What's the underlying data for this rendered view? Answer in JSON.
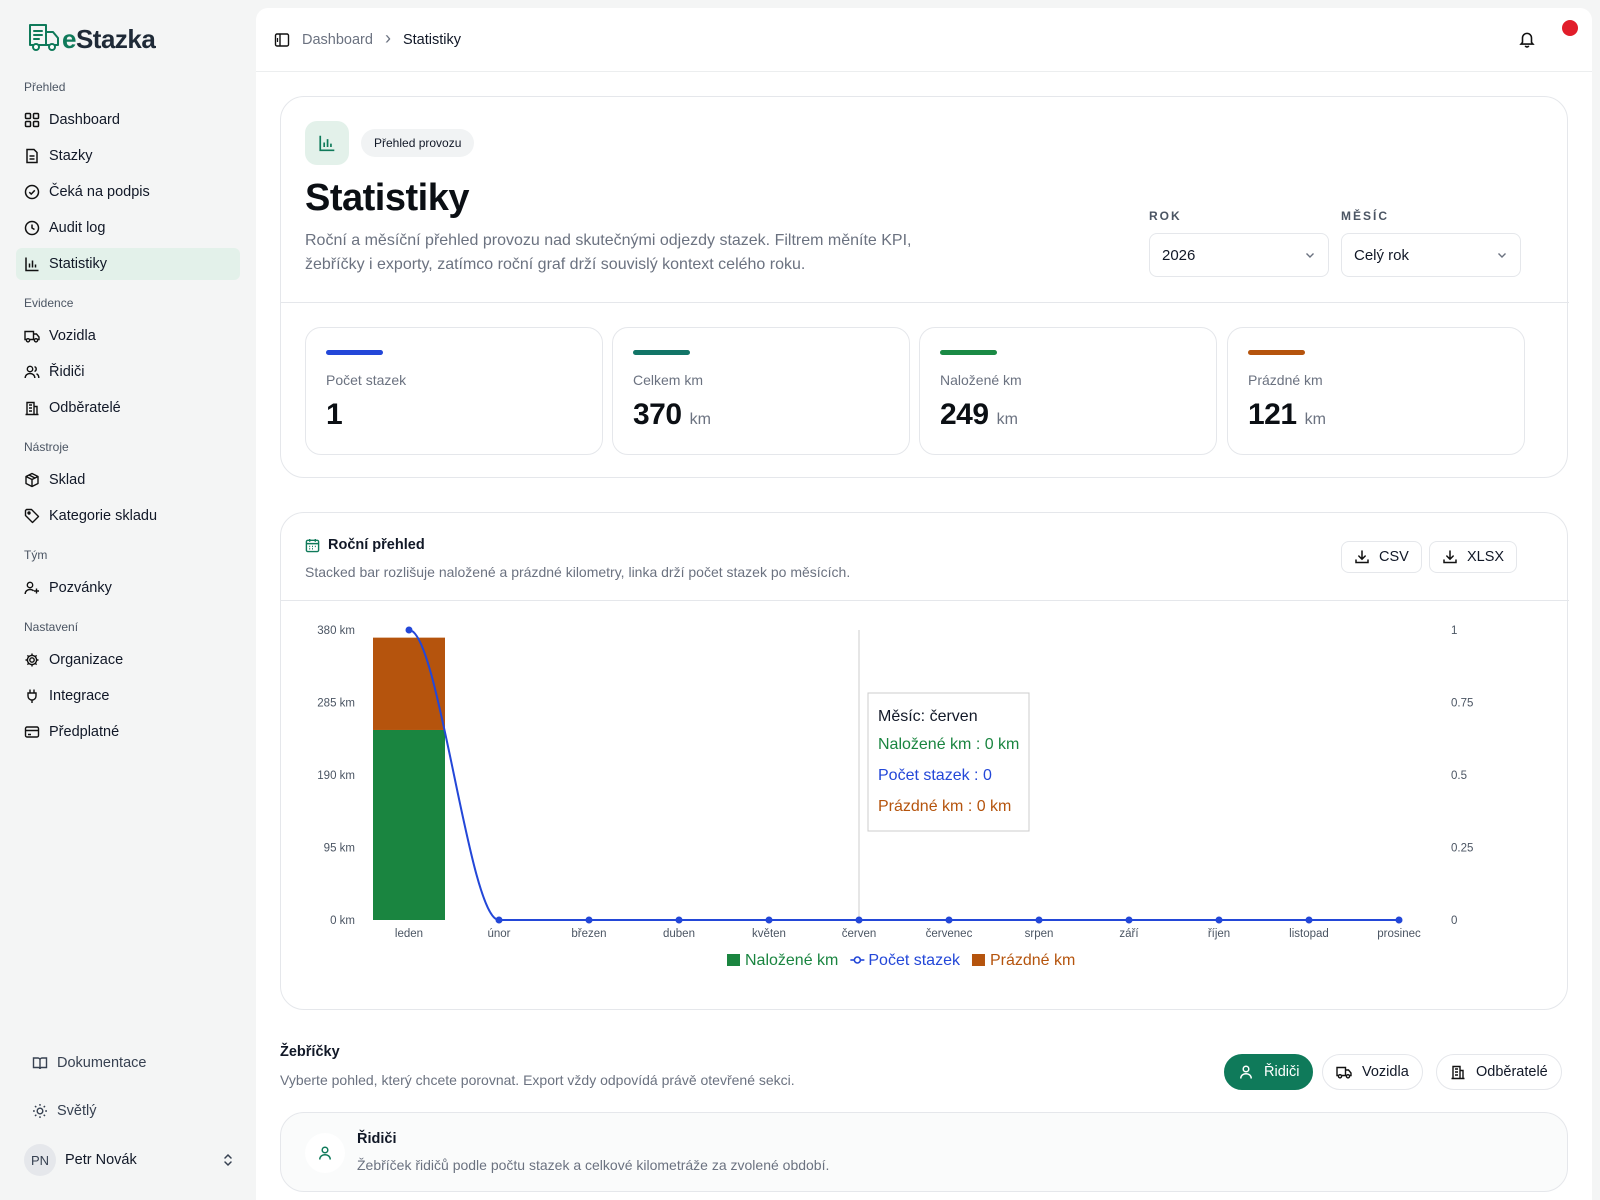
{
  "app": {
    "logo_e": "e",
    "logo_rest": "Stazka"
  },
  "sidebar": {
    "groups": [
      {
        "label": "Přehled"
      },
      {
        "label": "Evidence"
      },
      {
        "label": "Nástroje"
      },
      {
        "label": "Tým"
      },
      {
        "label": "Nastavení"
      }
    ],
    "items": [
      {
        "label": "Dashboard",
        "icon": "grid-icon"
      },
      {
        "label": "Stazky",
        "icon": "document-icon"
      },
      {
        "label": "Čeká na podpis",
        "icon": "check-circle-icon"
      },
      {
        "label": "Audit log",
        "icon": "clock-icon"
      },
      {
        "label": "Statistiky",
        "icon": "bar-chart-icon"
      },
      {
        "label": "Vozidla",
        "icon": "truck-icon"
      },
      {
        "label": "Řidiči",
        "icon": "users-icon"
      },
      {
        "label": "Odběratelé",
        "icon": "building-icon"
      },
      {
        "label": "Sklad",
        "icon": "box-icon"
      },
      {
        "label": "Kategorie skladu",
        "icon": "tag-icon"
      },
      {
        "label": "Pozvánky",
        "icon": "user-plus-icon"
      },
      {
        "label": "Organizace",
        "icon": "gear-icon"
      },
      {
        "label": "Integrace",
        "icon": "plug-icon"
      },
      {
        "label": "Předplatné",
        "icon": "credit-card-icon"
      }
    ],
    "active": "Statistiky",
    "docs_label": "Dokumentace",
    "theme_label": "Světlý",
    "user": {
      "initials": "PN",
      "name": "Petr Novák"
    }
  },
  "header": {
    "breadcrumb_root": "Dashboard",
    "breadcrumb_current": "Statistiky",
    "separator": "›"
  },
  "hero": {
    "pill": "Přehled provozu",
    "title": "Statistiky",
    "description": "Roční a měsíční přehled provozu nad skutečnými odjezdy stazek. Filtrem měníte KPI, žebříčky i exporty, zatímco roční graf drží souvislý kontext celého roku.",
    "year_label": "ROK",
    "year_value": "2026",
    "month_label": "MĚSÍC",
    "month_value": "Celý rok"
  },
  "kpis": [
    {
      "label": "Počet stazek",
      "value": "1",
      "unit": "",
      "color": "#2347d8"
    },
    {
      "label": "Celkem km",
      "value": "370",
      "unit": "km",
      "color": "#127567"
    },
    {
      "label": "Naložené km",
      "value": "249",
      "unit": "km",
      "color": "#1a8a45"
    },
    {
      "label": "Prázdné km",
      "value": "121",
      "unit": "km",
      "color": "#b5540d"
    }
  ],
  "chart_card": {
    "title": "Roční přehled",
    "description": "Stacked bar rozlišuje naložené a prázdné kilometry, linka drží počet stazek po měsících.",
    "export_csv": "CSV",
    "export_xlsx": "XLSX"
  },
  "chart_data": {
    "type": "bar",
    "stacked": true,
    "categories": [
      "leden",
      "únor",
      "březen",
      "duben",
      "květen",
      "červen",
      "červenec",
      "srpen",
      "září",
      "říjen",
      "listopad",
      "prosinec"
    ],
    "series": [
      {
        "name": "Naložené km",
        "kind": "bar",
        "axis": "left",
        "color": "#1a8540",
        "values": [
          249,
          0,
          0,
          0,
          0,
          0,
          0,
          0,
          0,
          0,
          0,
          0
        ]
      },
      {
        "name": "Prázdné km",
        "kind": "bar",
        "axis": "left",
        "color": "#b5540d",
        "values": [
          121,
          0,
          0,
          0,
          0,
          0,
          0,
          0,
          0,
          0,
          0,
          0
        ]
      },
      {
        "name": "Počet stazek",
        "kind": "line",
        "axis": "right",
        "color": "#2347d8",
        "values": [
          1,
          0,
          0,
          0,
          0,
          0,
          0,
          0,
          0,
          0,
          0,
          0
        ]
      }
    ],
    "legend_order": [
      "Naložené km",
      "Počet stazek",
      "Prázdné km"
    ],
    "y_left": {
      "ticks": [
        0,
        95,
        190,
        285,
        380
      ],
      "tick_labels": [
        "0 km",
        "95 km",
        "190 km",
        "285 km",
        "380 km"
      ],
      "lim": [
        0,
        380
      ]
    },
    "y_right": {
      "ticks": [
        0,
        0.25,
        0.5,
        0.75,
        1
      ],
      "tick_labels": [
        "0",
        "0.25",
        "0.5",
        "0.75",
        "1"
      ],
      "lim": [
        0,
        1
      ]
    },
    "tooltip": {
      "month": "Měsíc: červen",
      "lines": [
        {
          "text": "Naložené km : 0 km",
          "color": "#1a8540"
        },
        {
          "text": "Počet stazek : 0",
          "color": "#2347d8"
        },
        {
          "text": "Prázdné km : 0 km",
          "color": "#b5540d"
        }
      ],
      "hover_index": 5
    },
    "legend_position": "bottom",
    "grid": false
  },
  "rankings": {
    "title": "Žebříčky",
    "description": "Vyberte pohled, který chcete porovnat. Export vždy odpovídá právě otevřené sekci.",
    "tabs": [
      {
        "label": "Řidiči",
        "icon": "user-icon",
        "active": true
      },
      {
        "label": "Vozidla",
        "icon": "truck-icon",
        "active": false
      },
      {
        "label": "Odběratelé",
        "icon": "building-icon",
        "active": false
      }
    ],
    "section_title": "Řidiči",
    "section_desc": "Žebříček řidičů podle počtu stazek a celkové kilometráže za zvolené období."
  }
}
